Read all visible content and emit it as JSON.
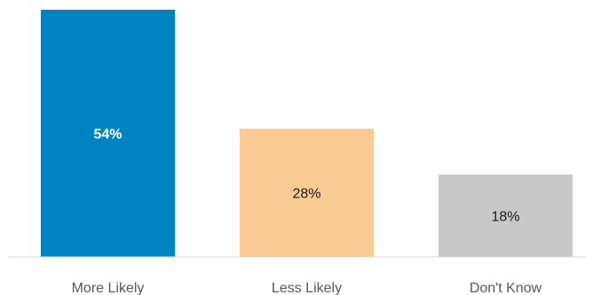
{
  "chart_data": {
    "type": "bar",
    "title": "",
    "xlabel": "",
    "ylabel": "",
    "categories": [
      "More Likely",
      "Less Likely",
      "Don't Know"
    ],
    "values": [
      54,
      28,
      18
    ],
    "value_labels": [
      "54%",
      "28%",
      "18%"
    ],
    "unit": "%",
    "ylim": [
      0,
      54
    ],
    "grid": false,
    "legend": "none",
    "colors": [
      "#0082C3",
      "#FACB95",
      "#C8C8C8"
    ],
    "label_colors": [
      "#FFFFFF",
      "#1A1A1A",
      "#1A1A1A"
    ],
    "label_bold": [
      true,
      false,
      false
    ]
  }
}
